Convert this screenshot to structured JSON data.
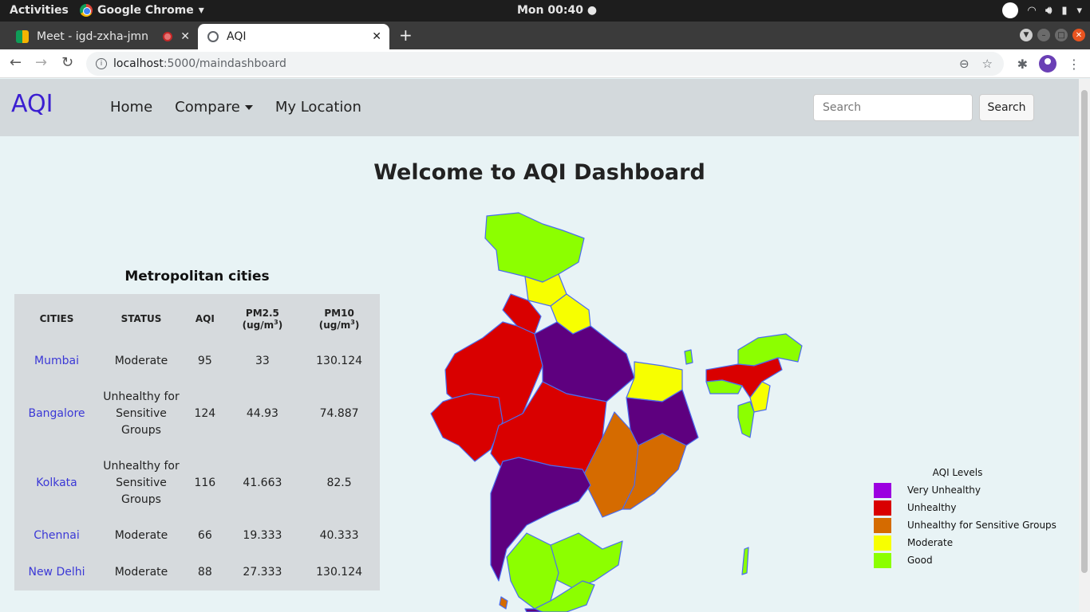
{
  "os": {
    "activities": "Activities",
    "app_name": "Google Chrome",
    "clock": "Mon 00:40"
  },
  "browser": {
    "tabs": [
      {
        "label": "Meet - igd-zxha-jmn"
      },
      {
        "label": "AQI"
      }
    ],
    "url_host": "localhost",
    "url_path": ":5000/maindashboard"
  },
  "nav": {
    "brand": "AQI",
    "links": [
      "Home",
      "Compare",
      "My Location"
    ],
    "search_placeholder": "Search",
    "search_button": "Search"
  },
  "main": {
    "heading": "Welcome to AQI Dashboard",
    "table_title": "Metropolitan cities",
    "columns": [
      "CITIES",
      "STATUS",
      "AQI",
      "PM2.5",
      "PM10"
    ],
    "unit_prefix": "(ug/m",
    "unit_exp": "3",
    "unit_suffix": ")",
    "rows": [
      {
        "city": "Mumbai",
        "status": "Moderate",
        "aqi": "95",
        "pm25": "33",
        "pm10": "130.124"
      },
      {
        "city": "Bangalore",
        "status": "Unhealthy for Sensitive Groups",
        "aqi": "124",
        "pm25": "44.93",
        "pm10": "74.887"
      },
      {
        "city": "Kolkata",
        "status": "Unhealthy for Sensitive Groups",
        "aqi": "116",
        "pm25": "41.663",
        "pm10": "82.5"
      },
      {
        "city": "Chennai",
        "status": "Moderate",
        "aqi": "66",
        "pm25": "19.333",
        "pm10": "40.333"
      },
      {
        "city": "New Delhi",
        "status": "Moderate",
        "aqi": "88",
        "pm25": "27.333",
        "pm10": "130.124"
      }
    ]
  },
  "legend": {
    "title": "AQI Levels",
    "items": [
      {
        "label": "Very Unhealthy",
        "color": "#9b00e0"
      },
      {
        "label": "Unhealthy",
        "color": "#d90000"
      },
      {
        "label": "Unhealthy for Sensitive Groups",
        "color": "#d56b00"
      },
      {
        "label": "Moderate",
        "color": "#f7ff00"
      },
      {
        "label": "Good",
        "color": "#8cff00"
      }
    ]
  },
  "map_colors": {
    "purple": "#5e007f",
    "red": "#d90000",
    "orange": "#d56b00",
    "yellow": "#f7ff00",
    "green": "#8cff00",
    "border": "#4a6cf0"
  }
}
